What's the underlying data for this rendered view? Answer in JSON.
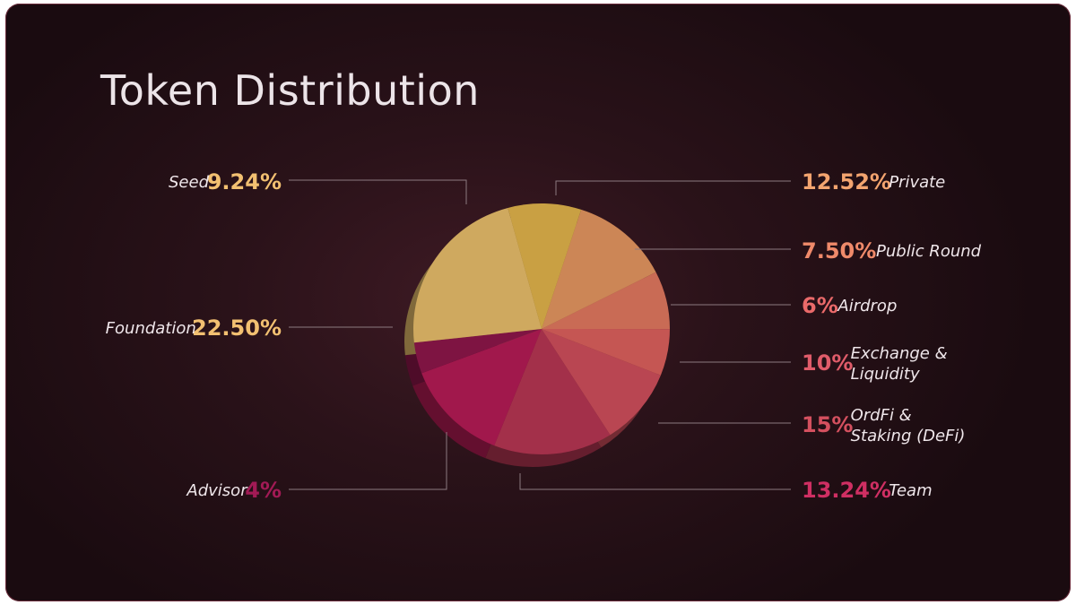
{
  "title": "Token Distribution",
  "chart_data": {
    "type": "pie",
    "title": "Token Distribution",
    "slices": [
      {
        "label": "Private",
        "pct_text": "12.52%",
        "value": 12.52,
        "color": "#cc8656",
        "label_lines": [
          "Private"
        ],
        "side": "right"
      },
      {
        "label": "Public Round",
        "pct_text": "7.50%",
        "value": 7.5,
        "color": "#c96b55",
        "label_lines": [
          "Public Round"
        ],
        "side": "right"
      },
      {
        "label": "Airdrop",
        "pct_text": "6%",
        "value": 6,
        "color": "#c55653",
        "label_lines": [
          "Airdrop"
        ],
        "side": "right"
      },
      {
        "label": "Exchange & Liquidity",
        "pct_text": "10%",
        "value": 10,
        "color": "#b94652",
        "label_lines": [
          "Exchange &",
          "Liquidity"
        ],
        "side": "right"
      },
      {
        "label": "OrdFi & Staking (DeFi)",
        "pct_text": "15%",
        "value": 15,
        "color": "#a3304a",
        "label_lines": [
          "OrdFi &",
          "Staking (DeFi)"
        ],
        "side": "right"
      },
      {
        "label": "Team",
        "pct_text": "13.24%",
        "value": 13.24,
        "color": "#a1184c",
        "label_lines": [
          "Team"
        ],
        "side": "right"
      },
      {
        "label": "Advisor",
        "pct_text": "4%",
        "value": 4,
        "color": "#7e1442",
        "label_lines": [
          "Advisor"
        ],
        "side": "left"
      },
      {
        "label": "Foundation",
        "pct_text": "22.50%",
        "value": 22.5,
        "color": "#cfa95f",
        "label_lines": [
          "Foundation"
        ],
        "side": "left"
      },
      {
        "label": "Seed",
        "pct_text": "9.24%",
        "value": 9.24,
        "color": "#c9a043",
        "label_lines": [
          "Seed"
        ],
        "side": "left"
      }
    ],
    "label_colors": {
      "Private": "#f3a46f",
      "Public Round": "#ef8a6a",
      "Airdrop": "#ea6a6a",
      "Exchange & Liquidity": "#e05c6a",
      "OrdFi & Staking (DeFi)": "#d4505f",
      "Team": "#cf2f63",
      "Advisor": "#a21a55",
      "Foundation": "#f2c071",
      "Seed": "#f2c071"
    },
    "legend": "callouts"
  }
}
